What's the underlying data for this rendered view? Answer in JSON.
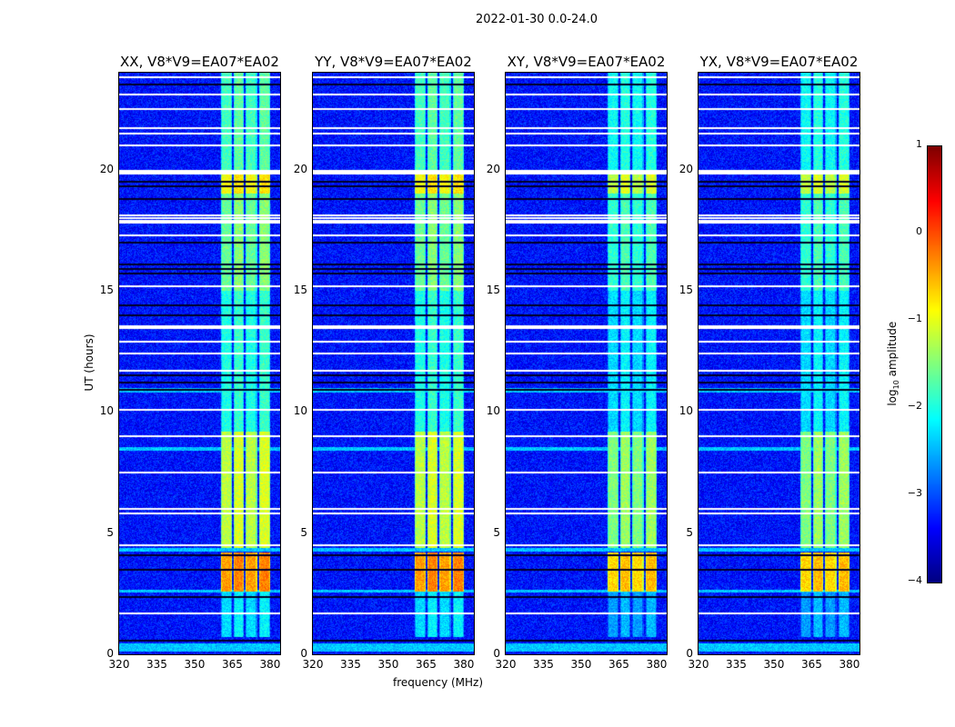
{
  "chart_data": {
    "type": "heatmap",
    "title": "2022-01-30 0.0-24.0",
    "xlabel": "frequency (MHz)",
    "ylabel": "UT (hours)",
    "xlim": [
      320,
      384
    ],
    "ylim": [
      0,
      24
    ],
    "xticks": [
      "320",
      "335",
      "350",
      "365",
      "380"
    ],
    "yticks": [
      "0",
      "5",
      "10",
      "15",
      "20"
    ],
    "panels": [
      {
        "title": "XX, V8*V9=EA07*EA02"
      },
      {
        "title": "YY, V8*V9=EA07*EA02"
      },
      {
        "title": "XY, V8*V9=EA07*EA02"
      },
      {
        "title": "YX, V8*V9=EA07*EA02"
      }
    ],
    "colorbar": {
      "label_prefix": "log",
      "label_sub": "10",
      "label_suffix": " amplitude",
      "range": [
        -4,
        1
      ],
      "ticks": [
        "1",
        "0",
        "−1",
        "−2",
        "−3",
        "−4"
      ],
      "colormap": "jet"
    },
    "background_level": -3.3,
    "signal_bands_mhz": [
      [
        360.4,
        365
      ],
      [
        365.5,
        369.5
      ],
      [
        370.2,
        374.9
      ],
      [
        375.6,
        380
      ]
    ],
    "signal_levels_by_time": [
      {
        "from": 0.7,
        "to": 2.6,
        "level": -2.3
      },
      {
        "from": 2.6,
        "to": 4.2,
        "level": -0.4
      },
      {
        "from": 4.4,
        "to": 9.2,
        "level": -1.2
      },
      {
        "from": 9.2,
        "to": 15.0,
        "level": -2.0
      },
      {
        "from": 15.0,
        "to": 19.0,
        "level": -1.6
      },
      {
        "from": 19.0,
        "to": 20.0,
        "level": -0.9
      },
      {
        "from": 20.0,
        "to": 24.0,
        "level": -1.8
      }
    ],
    "flagged_white_hours": [
      1.7,
      4.5,
      5.8,
      6.0,
      7.5,
      9.0,
      10.1,
      11.7,
      12.4,
      12.9,
      13.5,
      15.2,
      17.3,
      17.8,
      17.9,
      18.0,
      18.1,
      19.9,
      21.0,
      21.5,
      21.7,
      22.5,
      23.1,
      23.8
    ],
    "low_black_hours": [
      0.55,
      2.35,
      3.5,
      4.1,
      10.9,
      11.2,
      11.5,
      14.0,
      14.4,
      15.7,
      15.9,
      16.1,
      17.0,
      18.8,
      19.3,
      19.5,
      23.5
    ],
    "enhanced_rows_hours": [
      [
        0.1,
        0.45
      ],
      [
        2.55,
        2.65
      ],
      [
        4.25,
        4.4
      ],
      [
        8.4,
        8.55
      ],
      [
        10.8,
        11.0
      ]
    ]
  }
}
